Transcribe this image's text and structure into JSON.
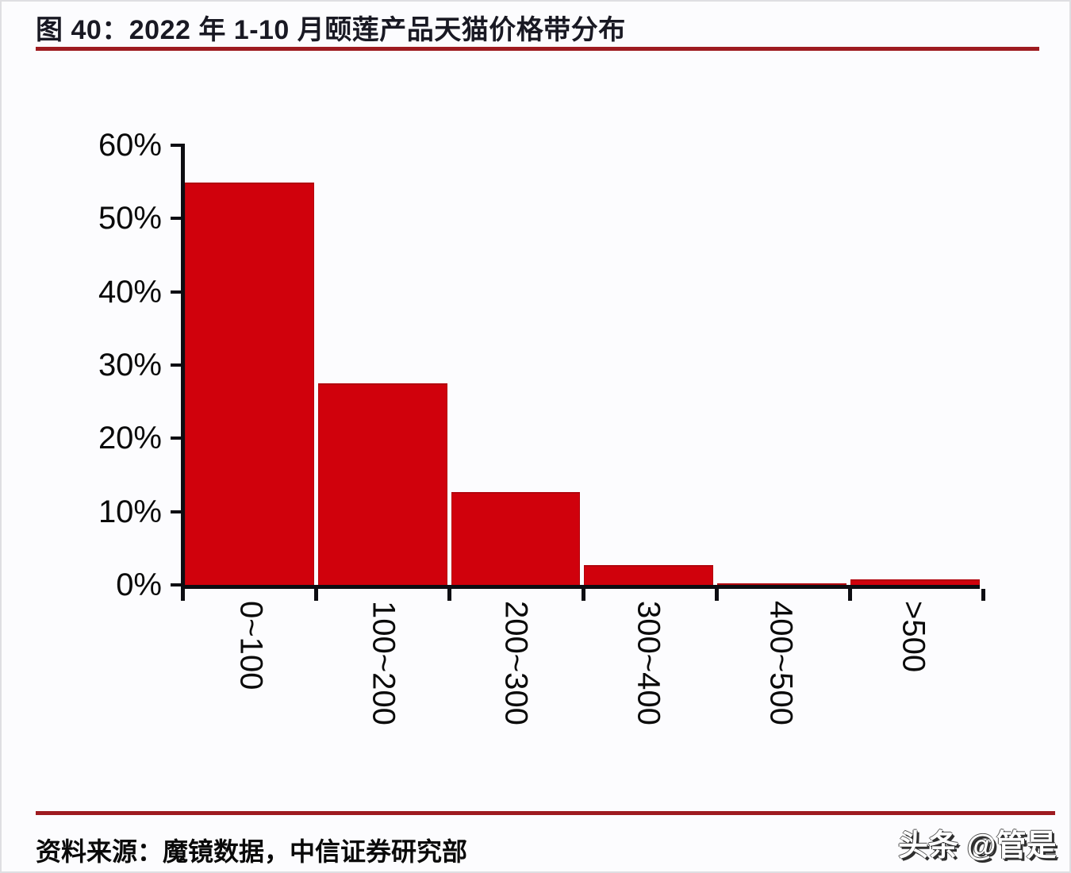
{
  "page": {
    "title": "图 40：2022 年 1-10 月颐莲产品天猫价格带分布",
    "source_note": "资料来源：魔镜数据，中信证券研究部",
    "watermark": "头条 @管是"
  },
  "colors": {
    "bar_fill": "#d0010c",
    "bar_edge": "#b2050e",
    "rule_red": "#9e1b20",
    "axis_black": "#0d0d12"
  },
  "chart_data": {
    "type": "bar",
    "title": "2022 年 1-10 月颐莲产品天猫价格带分布",
    "categories": [
      "0~100",
      "100~200",
      "200~300",
      "300~400",
      "400~500",
      ">500"
    ],
    "values": [
      54.9,
      27.5,
      12.7,
      2.7,
      0.1,
      0.8
    ],
    "unit": "%",
    "xlabel": "",
    "ylabel": "",
    "ylim": [
      0,
      60
    ],
    "ytick_step": 10,
    "ytick_labels_top_to_bottom": [
      "60%",
      "50%",
      "40%",
      "30%",
      "20%",
      "10%",
      "0%"
    ],
    "grid": false,
    "legend": null,
    "bar_color": "#d0010c",
    "x_tick_label_rotation_deg": 90
  }
}
